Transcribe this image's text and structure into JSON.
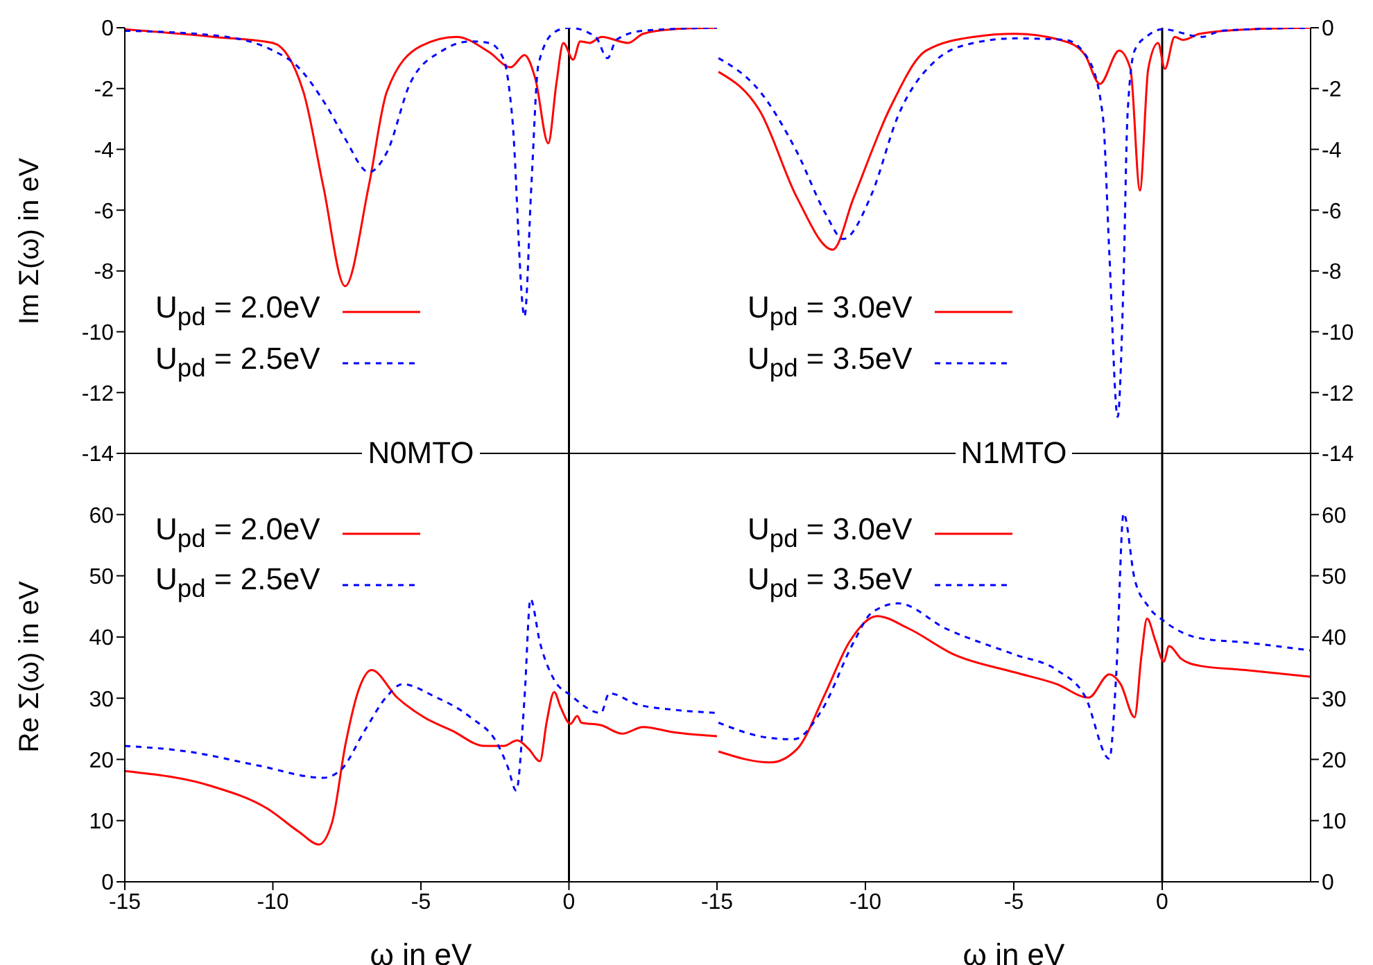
{
  "chart_data": [
    {
      "type": "line",
      "ylabel": "Im Σ(ω) in eV",
      "xlim": [
        -15,
        5
      ],
      "xticks": [
        -15,
        -10,
        -5,
        0
      ],
      "ylim": [
        -14,
        0
      ],
      "yticks": [
        -14,
        -12,
        -10,
        -8,
        -6,
        -4,
        -2,
        0
      ],
      "tick_labels": "y",
      "legend": "bottom left",
      "ref_lines": [
        {
          "axis": "x",
          "value": 0,
          "color": "#000000"
        }
      ],
      "series": [
        {
          "name": "U$_{pd}$ = 2.0eV",
          "color": "#ff0000",
          "line_style": "solid",
          "x": [
            -15,
            -12,
            -10,
            -8.97,
            -8.3,
            -7.56,
            -6.76,
            -6.15,
            -5.0,
            -3.8,
            -2.7,
            -1.97,
            -1.5,
            -1.13,
            -0.7,
            -0.42,
            -0.19,
            0.14,
            0.38,
            0.7,
            1.1,
            2.0,
            2.5,
            3.5,
            5
          ],
          "values": [
            -0.05,
            -0.3,
            -0.5,
            -2.1,
            -5.2,
            -8.5,
            -5.2,
            -2.1,
            -0.6,
            -0.3,
            -0.8,
            -1.3,
            -0.9,
            -1.7,
            -3.8,
            -1.8,
            -0.5,
            -1.05,
            -0.45,
            -0.5,
            -0.3,
            -0.5,
            -0.2,
            -0.05,
            0
          ]
        },
        {
          "name": "U$_{pd}$ = 2.5eV",
          "color": "#0000ff",
          "line_style": "dashed",
          "x": [
            -15,
            -12,
            -10,
            -9.25,
            -8.17,
            -7.56,
            -6.76,
            -6.15,
            -5.35,
            -4.27,
            -3.33,
            -2.7,
            -2.2,
            -1.92,
            -1.5,
            -1.27,
            -1.03,
            -0.5,
            0,
            0.9,
            1.3,
            1.6,
            2.5,
            5
          ],
          "values": [
            -0.1,
            -0.25,
            -0.75,
            -1.2,
            -2.6,
            -3.65,
            -4.75,
            -4.1,
            -1.8,
            -0.75,
            -0.45,
            -0.5,
            -1.05,
            -2.9,
            -9.5,
            -5.2,
            -1.2,
            -0.15,
            0,
            -0.3,
            -1.0,
            -0.4,
            -0.1,
            0
          ]
        }
      ]
    },
    {
      "type": "line",
      "xlim": [
        -15,
        5
      ],
      "xticks": [
        -15,
        -10,
        -5,
        0
      ],
      "ylim": [
        -14,
        0
      ],
      "yticks": [
        -14,
        -12,
        -10,
        -8,
        -6,
        -4,
        -2,
        0
      ],
      "tick_labels": "y",
      "legend": "bottom left",
      "ref_lines": [
        {
          "axis": "x",
          "value": 0,
          "color": "#000000"
        }
      ],
      "series": [
        {
          "name": "U$_{pd}$ = 3.0eV",
          "color": "#ff0000",
          "line_style": "solid",
          "x": [
            -14.95,
            -13.55,
            -12.3,
            -11.1,
            -10.4,
            -9.15,
            -7.95,
            -6.35,
            -4.95,
            -3.27,
            -2.6,
            -2.1,
            -1.45,
            -1.07,
            -0.75,
            -0.47,
            -0.14,
            0.09,
            0.42,
            0.7,
            1.26,
            3,
            5
          ],
          "values": [
            -1.45,
            -2.75,
            -5.6,
            -7.3,
            -5.6,
            -2.6,
            -0.75,
            -0.3,
            -0.2,
            -0.45,
            -0.9,
            -1.85,
            -0.75,
            -1.35,
            -5.35,
            -1.35,
            -0.5,
            -1.35,
            -0.3,
            -0.4,
            -0.2,
            -0.05,
            0
          ]
        },
        {
          "name": "U$_{pd}$ = 3.5eV",
          "color": "#0000ff",
          "line_style": "dashed",
          "x": [
            -14.95,
            -13.55,
            -12.3,
            -11.35,
            -10.75,
            -9.8,
            -8.9,
            -7.6,
            -6.35,
            -4.95,
            -3.27,
            -2.48,
            -2.0,
            -1.78,
            -1.5,
            -1.3,
            -1.17,
            -0.93,
            -0.47,
            0,
            1.35,
            2,
            5
          ],
          "values": [
            -1.0,
            -2.1,
            -4.1,
            -6.1,
            -6.95,
            -5.5,
            -2.9,
            -1.05,
            -0.5,
            -0.35,
            -0.4,
            -1.05,
            -2.9,
            -7.45,
            -12.8,
            -8.2,
            -2.9,
            -0.75,
            -0.25,
            -0.05,
            -0.3,
            -0.1,
            0
          ]
        }
      ]
    },
    {
      "type": "line",
      "title": "N0MTO",
      "xlabel": "ω in eV",
      "ylabel": "Re Σ(ω) in eV",
      "xlim": [
        -15,
        5
      ],
      "xticks": [
        -15,
        -10,
        -5,
        0
      ],
      "ylim": [
        0,
        70
      ],
      "yticks": [
        0,
        10,
        20,
        30,
        40,
        50,
        60
      ],
      "legend": "top left",
      "ref_lines": [
        {
          "axis": "x",
          "value": 0,
          "color": "#000000"
        }
      ],
      "series": [
        {
          "name": "U$_{pd}$ = 2.0eV",
          "color": "#ff0000",
          "line_style": "solid",
          "x": [
            -15,
            -12.05,
            -10.2,
            -9.1,
            -8.45,
            -8.0,
            -7.55,
            -7.1,
            -6.67,
            -5.8,
            -4.9,
            -3.95,
            -2.85,
            -2.2,
            -1.75,
            -1.36,
            -0.98,
            -0.75,
            -0.5,
            -0.28,
            0.05,
            0.28,
            0.42,
            1.08,
            1.8,
            2.5,
            3.57,
            5
          ],
          "values": [
            18.1,
            15.6,
            12.0,
            8.1,
            6.1,
            9.7,
            22.4,
            31.4,
            34.6,
            30.1,
            26.9,
            24.7,
            22.2,
            22.2,
            23.1,
            21.7,
            19.7,
            26.2,
            31.0,
            28.5,
            25.8,
            27.1,
            26.0,
            25.6,
            24.2,
            25.3,
            24.4,
            23.8
          ]
        },
        {
          "name": "U$_{pd}$ = 2.5eV",
          "color": "#0000ff",
          "line_style": "dashed",
          "x": [
            -15,
            -12.9,
            -10.5,
            -8.3,
            -7.7,
            -6.9,
            -6.15,
            -5.63,
            -4.55,
            -3.33,
            -2.4,
            -2.07,
            -1.78,
            -1.5,
            -1.3,
            -0.98,
            -0.5,
            0.05,
            1.08,
            1.36,
            2.3,
            3.57,
            5
          ],
          "values": [
            22.2,
            21.3,
            19.0,
            17.0,
            18.3,
            24.7,
            30.3,
            32.3,
            30.3,
            26.9,
            22.4,
            18.8,
            14.9,
            30.1,
            46.2,
            39.1,
            33.0,
            30.5,
            27.6,
            30.8,
            29.0,
            28.1,
            27.6
          ]
        }
      ]
    },
    {
      "type": "line",
      "title": "N1MTO",
      "xlabel": "ω  in eV",
      "xlim": [
        -15,
        5
      ],
      "xticks": [
        -15,
        -10,
        -5,
        0
      ],
      "ylim": [
        0,
        70
      ],
      "yticks": [
        0,
        10,
        20,
        30,
        40,
        50,
        60
      ],
      "legend": "top left",
      "ref_lines": [
        {
          "axis": "x",
          "value": 0,
          "color": "#000000"
        }
      ],
      "series": [
        {
          "name": "U$_{pd}$ = 3.0eV",
          "color": "#ff0000",
          "line_style": "solid",
          "x": [
            -14.95,
            -13.2,
            -12.3,
            -11.35,
            -10.55,
            -9.6,
            -8.55,
            -7.0,
            -4.95,
            -3.55,
            -2.48,
            -1.78,
            -1.4,
            -0.93,
            -0.7,
            -0.51,
            -0.23,
            0.05,
            0.23,
            0.65,
            1.26,
            2.8,
            5
          ],
          "values": [
            21.3,
            19.5,
            21.7,
            30.8,
            39.1,
            43.4,
            41.4,
            37.1,
            34.2,
            32.3,
            30.1,
            33.9,
            32.3,
            26.9,
            36.9,
            43.0,
            39.4,
            36.0,
            38.5,
            36.4,
            35.3,
            34.6,
            33.5
          ]
        },
        {
          "name": "U$_{pd}$ = 3.5eV",
          "color": "#0000ff",
          "line_style": "dashed",
          "x": [
            -14.95,
            -13.2,
            -12.4,
            -11.5,
            -10.4,
            -9.8,
            -8.9,
            -7.3,
            -4.95,
            -3.55,
            -2.6,
            -1.78,
            -1.55,
            -1.3,
            -0.93,
            -0.47,
            0.09,
            1.26,
            2.8,
            5
          ],
          "values": [
            26.0,
            23.5,
            23.3,
            27.8,
            39.1,
            43.9,
            45.5,
            41.4,
            37.1,
            34.6,
            30.3,
            20.1,
            33.7,
            60.2,
            49.5,
            45.0,
            42.5,
            39.8,
            39.1,
            37.8
          ]
        }
      ]
    }
  ]
}
